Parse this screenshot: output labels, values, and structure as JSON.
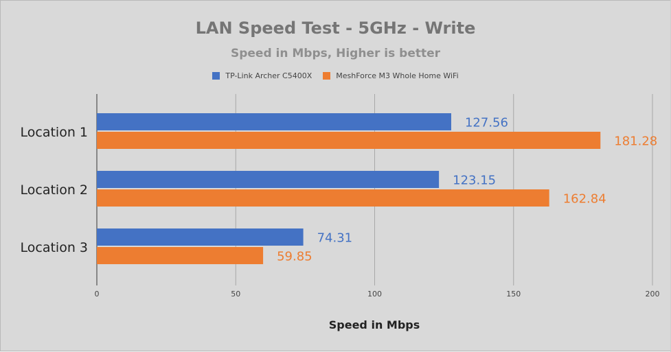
{
  "chart_data": {
    "type": "bar",
    "orientation": "horizontal",
    "title": "LAN Speed Test - 5GHz - Write",
    "subtitle": "Speed in Mbps, Higher is better",
    "xlabel": "Speed in Mbps",
    "ylabel": "",
    "categories": [
      "Location 1",
      "Location 2",
      "Location 3"
    ],
    "series": [
      {
        "name": "TP-Link Archer C5400X",
        "color": "#4472c4",
        "values": [
          127.56,
          123.15,
          74.31
        ]
      },
      {
        "name": "MeshForce M3 Whole Home WiFi",
        "color": "#ed7d31",
        "values": [
          181.28,
          162.84,
          59.85
        ]
      }
    ],
    "xlim": [
      0,
      200
    ],
    "xticks": [
      0,
      50,
      100,
      150,
      200
    ],
    "grid": true,
    "legend_position": "top"
  }
}
